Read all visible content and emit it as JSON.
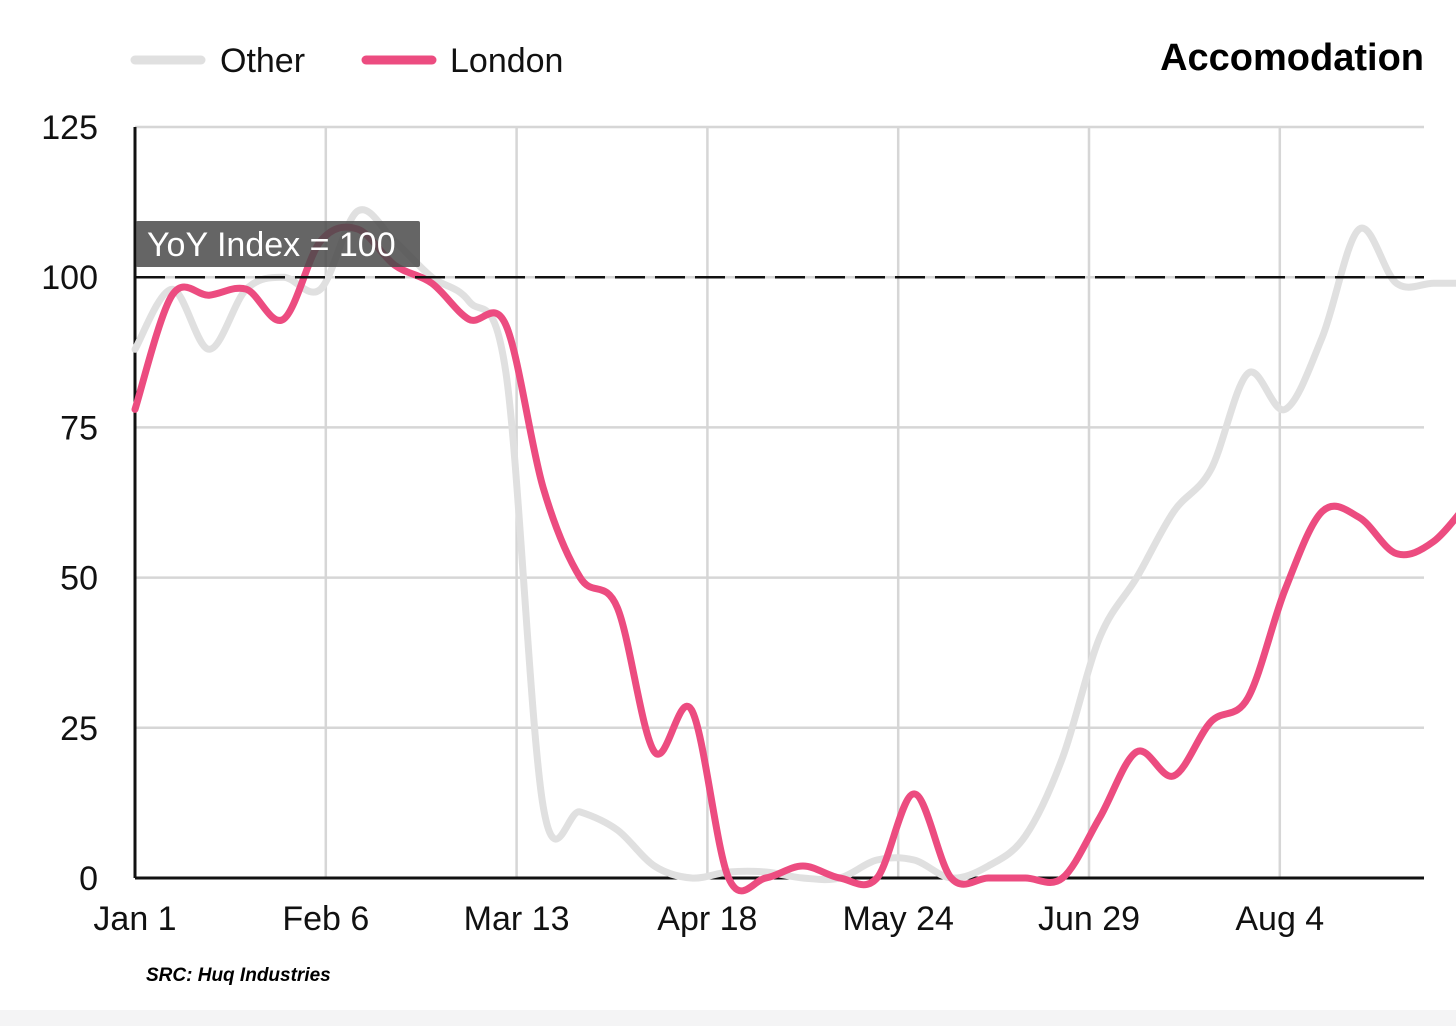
{
  "chart_data": {
    "type": "line",
    "title": "Accomodation",
    "xlabel": "",
    "ylabel": "",
    "x_ticks": [
      "Jan 1",
      "Feb 6",
      "Mar 13",
      "Apr 18",
      "May 24",
      "Jun 29",
      "Aug 4"
    ],
    "y_ticks": [
      "0",
      "25",
      "50",
      "75",
      "100",
      "125"
    ],
    "ylim": [
      0,
      125
    ],
    "grid": true,
    "legend_position": "top-left",
    "reference_line": {
      "value": 100,
      "label": "YoY Index = 100",
      "style": "dashed"
    },
    "source": "SRC: Huq Industries",
    "x": [
      "Jan 1",
      "Jan 8",
      "Jan 15",
      "Jan 22",
      "Jan 29",
      "Feb 5",
      "Feb 12",
      "Feb 19",
      "Feb 26",
      "Mar 4",
      "Mar 11",
      "Mar 18",
      "Mar 25",
      "Apr 1",
      "Apr 8",
      "Apr 15",
      "Apr 22",
      "Apr 29",
      "May 6",
      "May 13",
      "May 20",
      "May 27",
      "Jun 3",
      "Jun 10",
      "Jun 17",
      "Jun 24",
      "Jul 1",
      "Jul 8",
      "Jul 15",
      "Jul 22",
      "Jul 29",
      "Aug 5",
      "Aug 12",
      "Aug 19",
      "Aug 26",
      "Sep 2",
      "Sep 9"
    ],
    "series": [
      {
        "name": "Other",
        "color": "#e0e0e0",
        "values": [
          88,
          98,
          88,
          98,
          100,
          98,
          111,
          106,
          100,
          96,
          84,
          12,
          11,
          8,
          2,
          0,
          1,
          1,
          0,
          0,
          3,
          3,
          0,
          2,
          7,
          20,
          40,
          50,
          61,
          68,
          84,
          78,
          90,
          108,
          99,
          99,
          99
        ]
      },
      {
        "name": "London",
        "color": "#ec4c80",
        "values": [
          78,
          97,
          97,
          98,
          93,
          106,
          108,
          102,
          99,
          93,
          92,
          65,
          50,
          45,
          21,
          28,
          0,
          0,
          2,
          0,
          0,
          14,
          0,
          0,
          0,
          0,
          10,
          21,
          17,
          26,
          30,
          48,
          61,
          60,
          54,
          56,
          63
        ]
      }
    ]
  }
}
